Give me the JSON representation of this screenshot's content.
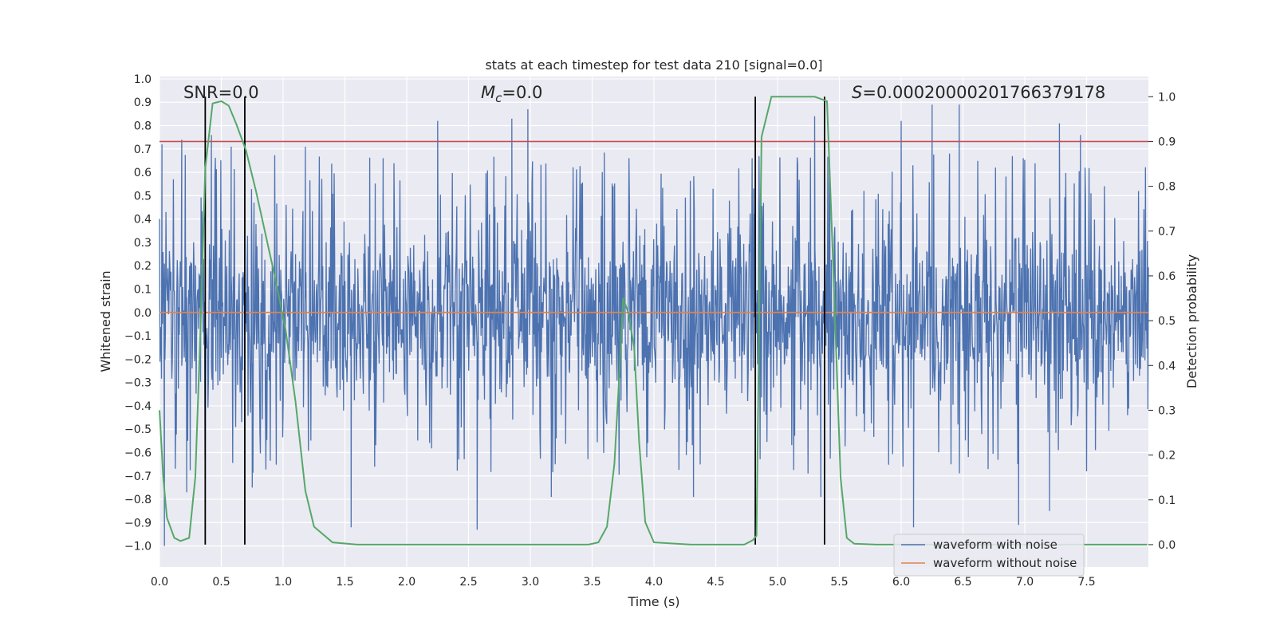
{
  "chart_data": {
    "type": "line",
    "title": "stats at each timestep for test data 210 [signal=0.0]",
    "xlabel": "Time (s)",
    "ylabel": "Whitened strain",
    "y2label": "Detection probability",
    "xlim": [
      0.0,
      8.0
    ],
    "ylim": [
      -1.09,
      1.01
    ],
    "y2lim": [
      -0.05,
      1.045
    ],
    "x_ticks": [
      "0.0",
      "0.5",
      "1.0",
      "1.5",
      "2.0",
      "2.5",
      "3.0",
      "3.5",
      "4.0",
      "4.5",
      "5.0",
      "5.5",
      "6.0",
      "6.5",
      "7.0",
      "7.5"
    ],
    "x_tick_values": [
      0.0,
      0.5,
      1.0,
      1.5,
      2.0,
      2.5,
      3.0,
      3.5,
      4.0,
      4.5,
      5.0,
      5.5,
      6.0,
      6.5,
      7.0,
      7.5
    ],
    "y_ticks": [
      "1.0",
      "0.9",
      "0.8",
      "0.7",
      "0.6",
      "0.5",
      "0.4",
      "0.3",
      "0.2",
      "0.1",
      "0.0",
      "−0.1",
      "−0.2",
      "−0.3",
      "−0.4",
      "−0.5",
      "−0.6",
      "−0.7",
      "−0.8",
      "−0.9",
      "−1.0"
    ],
    "y_tick_values": [
      1.0,
      0.9,
      0.8,
      0.7,
      0.6,
      0.5,
      0.4,
      0.3,
      0.2,
      0.1,
      0.0,
      -0.1,
      -0.2,
      -0.3,
      -0.4,
      -0.5,
      -0.6,
      -0.7,
      -0.8,
      -0.9,
      -1.0
    ],
    "y2_ticks": [
      "1.0",
      "0.9",
      "0.8",
      "0.7",
      "0.6",
      "0.5",
      "0.4",
      "0.3",
      "0.2",
      "0.1",
      "0.0"
    ],
    "y2_tick_values": [
      1.0,
      0.9,
      0.8,
      0.7,
      0.6,
      0.5,
      0.4,
      0.3,
      0.2,
      0.1,
      0.0
    ],
    "annotations": {
      "snr": "SNR=0.0",
      "mc_symbol": "M",
      "mc_sub": "c",
      "mc_value": "=0.0",
      "s_symbol": "S",
      "s_value": "=0.00020000201766379178"
    },
    "threshold": {
      "value": 0.9,
      "axis": "right",
      "color": "#c44e52"
    },
    "vertical_markers": [
      0.37,
      0.69,
      4.82,
      5.38
    ],
    "series": [
      {
        "name": "waveform with noise",
        "color": "#4c72b0",
        "axis": "left",
        "envelope": {
          "typical_upper": 0.45,
          "typical_lower": -0.45,
          "max": 0.92,
          "min": -1.0
        },
        "peaks": [
          [
            0.18,
            0.74
          ],
          [
            0.02,
            0.72
          ],
          [
            0.42,
            0.76
          ],
          [
            0.58,
            0.71
          ],
          [
            1.18,
            0.71
          ],
          [
            2.25,
            0.82
          ],
          [
            2.85,
            0.83
          ],
          [
            2.98,
            0.87
          ],
          [
            4.82,
            0.91
          ],
          [
            5.3,
            0.84
          ],
          [
            6.0,
            0.82
          ],
          [
            6.25,
            0.89
          ],
          [
            6.47,
            0.89
          ],
          [
            7.28,
            0.81
          ],
          [
            7.45,
            0.76
          ]
        ],
        "troughs": [
          [
            0.04,
            -1.0
          ],
          [
            0.22,
            -0.77
          ],
          [
            0.75,
            -0.75
          ],
          [
            1.55,
            -0.92
          ],
          [
            2.57,
            -0.93
          ],
          [
            3.17,
            -0.79
          ],
          [
            4.32,
            -0.79
          ],
          [
            5.35,
            -0.79
          ],
          [
            6.1,
            -0.92
          ],
          [
            6.95,
            -0.91
          ],
          [
            7.2,
            -0.85
          ]
        ]
      },
      {
        "name": "waveform without noise",
        "color": "#dd8452",
        "axis": "left",
        "x": [
          0.0,
          8.0
        ],
        "values": [
          0.0,
          0.0
        ]
      },
      {
        "name": "detection probability",
        "color": "#55a868",
        "axis": "right",
        "x": [
          0.0,
          0.03,
          0.06,
          0.12,
          0.17,
          0.24,
          0.29,
          0.33,
          0.37,
          0.43,
          0.5,
          0.56,
          0.62,
          0.7,
          0.78,
          0.86,
          0.94,
          1.02,
          1.1,
          1.18,
          1.25,
          1.4,
          1.6,
          2.0,
          2.5,
          3.0,
          3.3,
          3.47,
          3.55,
          3.62,
          3.68,
          3.72,
          3.75,
          3.79,
          3.84,
          3.88,
          3.93,
          4.0,
          4.3,
          4.6,
          4.73,
          4.8,
          4.83,
          4.87,
          4.95,
          5.2,
          5.3,
          5.35,
          5.4,
          5.45,
          5.51,
          5.56,
          5.62,
          5.8,
          6.2,
          7.0,
          7.99
        ],
        "values": [
          0.3,
          0.15,
          0.06,
          0.015,
          0.008,
          0.015,
          0.15,
          0.47,
          0.84,
          0.985,
          0.99,
          0.98,
          0.94,
          0.88,
          0.79,
          0.69,
          0.59,
          0.48,
          0.32,
          0.12,
          0.04,
          0.005,
          0.0,
          0.0,
          0.0,
          0.0,
          0.0,
          0.0,
          0.005,
          0.04,
          0.18,
          0.38,
          0.55,
          0.52,
          0.44,
          0.23,
          0.05,
          0.005,
          0.0,
          0.0,
          0.0,
          0.01,
          0.02,
          0.91,
          1.0,
          1.0,
          1.0,
          0.995,
          0.99,
          0.62,
          0.15,
          0.015,
          0.002,
          0.0,
          0.0,
          0.0,
          0.0
        ]
      }
    ],
    "legend": {
      "position": "lower-right",
      "entries": [
        "waveform with noise",
        "waveform without noise"
      ]
    }
  }
}
